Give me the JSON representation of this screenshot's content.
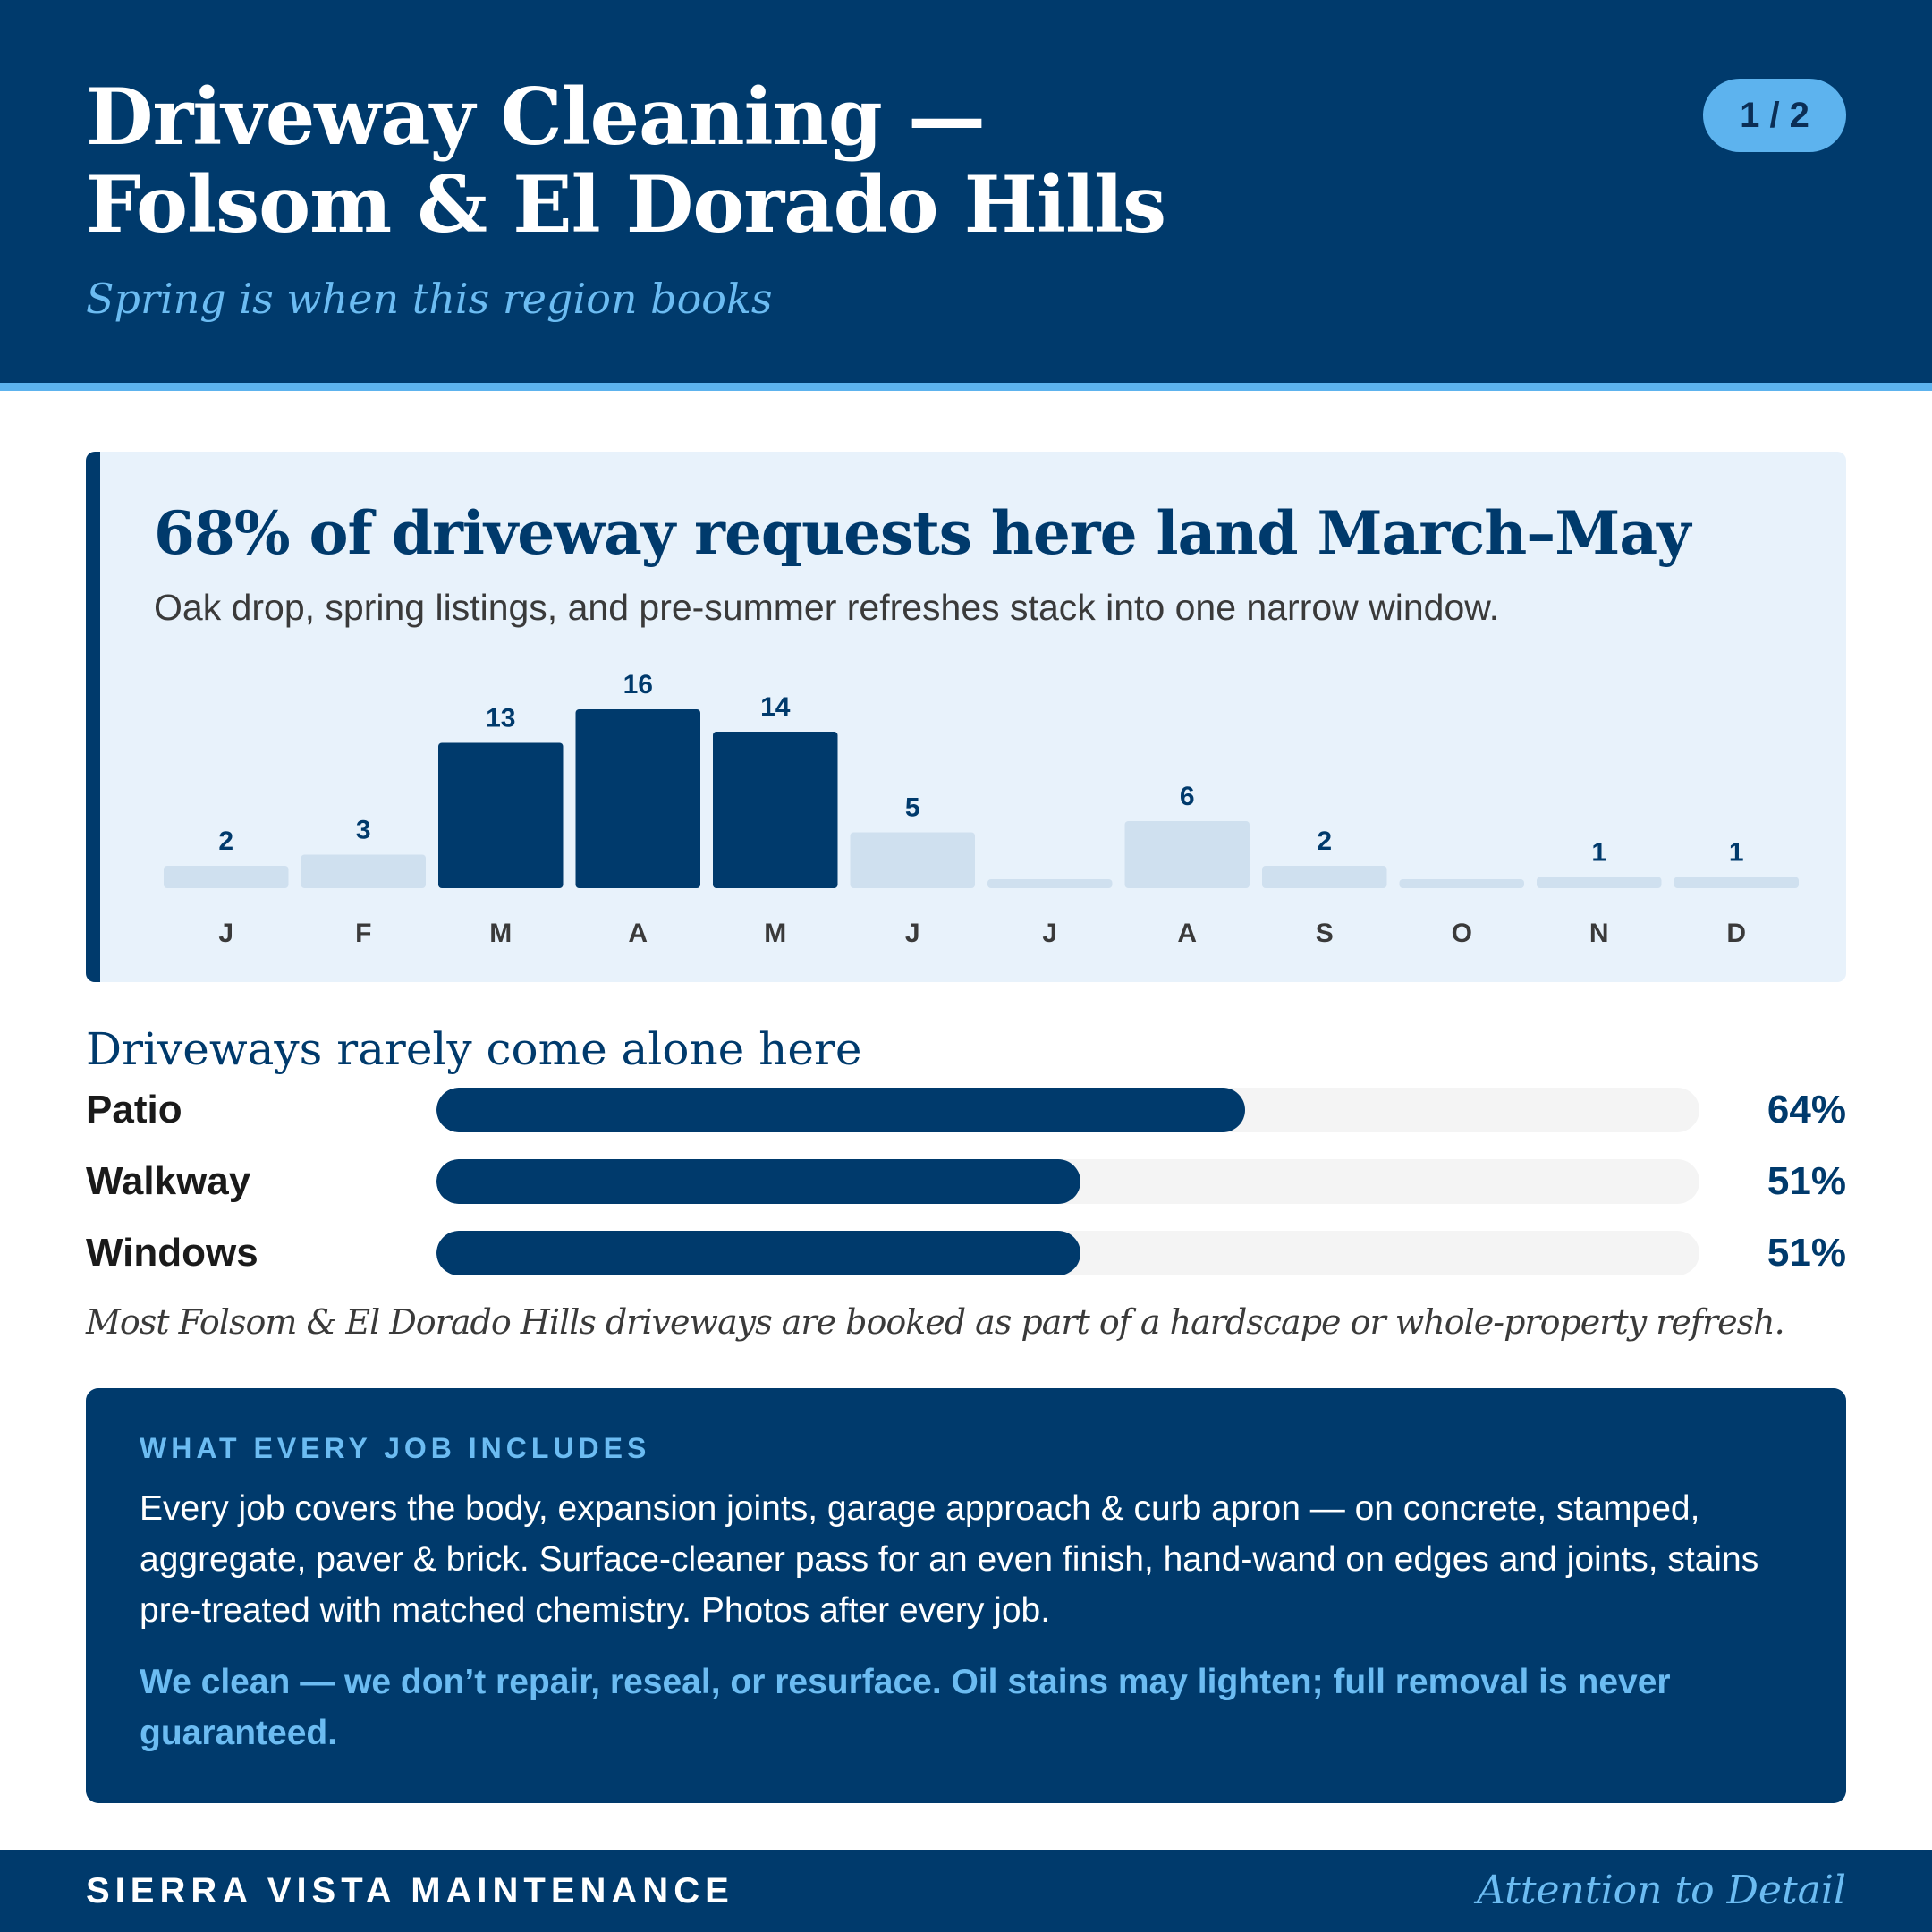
{
  "header": {
    "title_line1": "Driveway Cleaning —",
    "title_line2": "Folsom & El Dorado Hills",
    "subtitle": "Spring is when this region books",
    "page_indicator": "1 / 2"
  },
  "seasonality": {
    "headline": "68% of driveway requests here land March–May",
    "caption": "Oak drop, spring listings, and pre-summer refreshes stack into one narrow window."
  },
  "chart_data": {
    "type": "bar",
    "categories": [
      "J",
      "F",
      "M",
      "A",
      "M",
      "J",
      "J",
      "A",
      "S",
      "O",
      "N",
      "D"
    ],
    "values": [
      2,
      3,
      13,
      16,
      14,
      5,
      0,
      6,
      2,
      0,
      1,
      1
    ],
    "data_labels": [
      "2",
      "3",
      "13",
      "16",
      "14",
      "5",
      "",
      "6",
      "2",
      "",
      "1",
      "1"
    ],
    "highlighted": [
      false,
      false,
      true,
      true,
      true,
      false,
      false,
      false,
      false,
      false,
      false,
      false
    ],
    "title": "",
    "xlabel": "",
    "ylabel": "",
    "ylim": [
      0,
      16
    ],
    "grid": false,
    "colors": {
      "highlight": "#003a6c",
      "base": "#cfe0ef",
      "label": "#003a6c",
      "tick": "#3a3a3a"
    }
  },
  "addons": {
    "heading": "Driveways rarely come alone here",
    "items": [
      {
        "label": "Patio",
        "percent": 64,
        "value_text": "64%"
      },
      {
        "label": "Walkway",
        "percent": 51,
        "value_text": "51%"
      },
      {
        "label": "Windows",
        "percent": 51,
        "value_text": "51%"
      }
    ],
    "note": "Most Folsom & El Dorado Hills driveways are booked as part of a hardscape or whole-property refresh."
  },
  "includes": {
    "heading": "WHAT EVERY JOB INCLUDES",
    "body": "Every job covers the body, expansion joints, garage approach & curb apron — on concrete, stamped, aggregate, paver & brick. Surface-cleaner pass for an even finish, hand-wand on edges and joints, stains pre-treated with matched chemistry. Photos after every job.",
    "disclaimer": "We clean — we don’t repair, reseal, or resurface. Oil stains may lighten; full removal is never guaranteed."
  },
  "footer": {
    "brand": "SIERRA VISTA MAINTENANCE",
    "tagline": "Attention to Detail"
  },
  "colors": {
    "navy": "#003a6c",
    "sky": "#5db3ee",
    "card_bg": "#e8f2fb",
    "track_bg": "#f4f4f4"
  }
}
